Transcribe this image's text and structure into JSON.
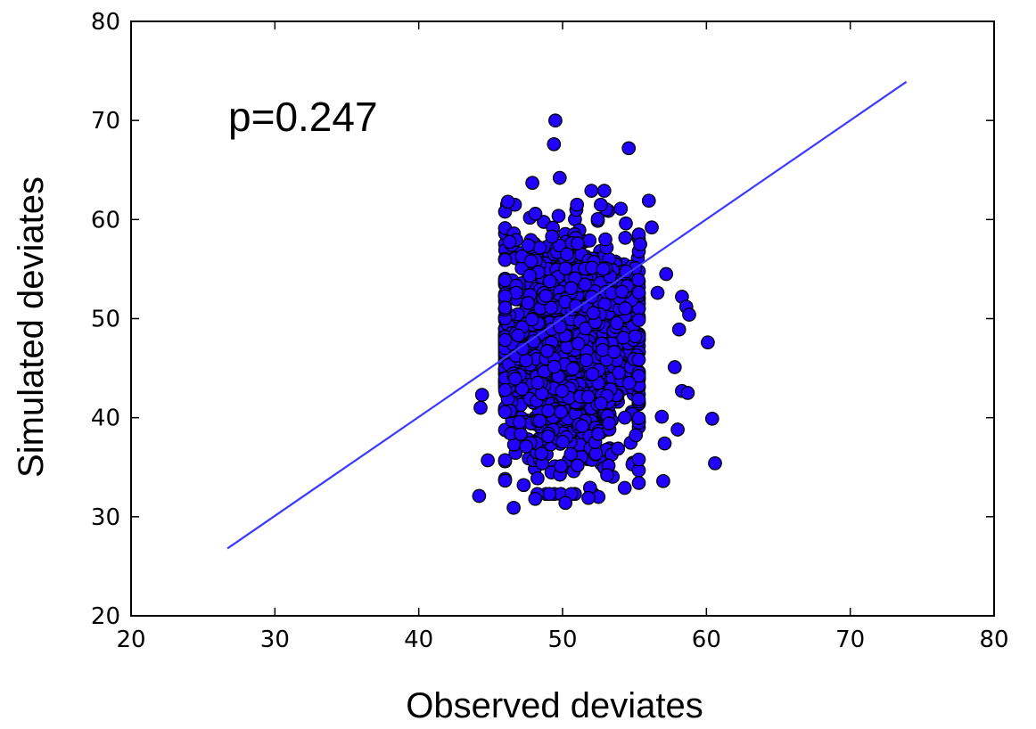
{
  "chart_data": {
    "type": "scatter",
    "title": "",
    "xlabel": "Observed deviates",
    "ylabel": "Simulated deviates",
    "xlim": [
      20,
      80
    ],
    "ylim": [
      20,
      80
    ],
    "xticks": [
      20,
      30,
      40,
      50,
      60,
      70,
      80
    ],
    "yticks": [
      20,
      30,
      40,
      50,
      60,
      70,
      80
    ],
    "grid": false,
    "annotation": "p=0.247",
    "colors": {
      "point_fill": "#2200ff",
      "point_edge": "#000000",
      "line": "#3a3aff",
      "axes": "#000000"
    },
    "reference_line": {
      "x": [
        26.7,
        73.9
      ],
      "y": [
        26.8,
        73.9
      ]
    },
    "cloud": {
      "n": 1500,
      "x_mean": 50.3,
      "x_sd": 2.7,
      "x_range": [
        44.0,
        60.7
      ],
      "y_mean": 47.0,
      "y_sd": 5.6,
      "y_range": [
        30.8,
        70.0
      ]
    },
    "notable_points": [
      [
        49.5,
        70.0
      ],
      [
        49.4,
        67.6
      ],
      [
        54.6,
        67.2
      ],
      [
        49.8,
        64.2
      ],
      [
        47.9,
        63.7
      ],
      [
        52.0,
        62.9
      ],
      [
        52.9,
        62.9
      ],
      [
        56.0,
        61.9
      ],
      [
        46.2,
        61.8
      ],
      [
        56.2,
        59.2
      ],
      [
        55.4,
        57.5
      ],
      [
        57.2,
        54.5
      ],
      [
        58.3,
        52.2
      ],
      [
        58.6,
        51.2
      ],
      [
        58.8,
        50.4
      ],
      [
        56.6,
        52.6
      ],
      [
        58.1,
        48.9
      ],
      [
        60.1,
        47.6
      ],
      [
        57.8,
        45.1
      ],
      [
        58.3,
        42.7
      ],
      [
        58.7,
        42.5
      ],
      [
        56.9,
        40.1
      ],
      [
        60.4,
        39.9
      ],
      [
        58.0,
        38.8
      ],
      [
        57.1,
        37.4
      ],
      [
        60.6,
        35.4
      ],
      [
        57.0,
        33.6
      ],
      [
        44.2,
        32.1
      ],
      [
        44.4,
        42.3
      ],
      [
        44.3,
        41.0
      ],
      [
        44.8,
        35.7
      ],
      [
        46.6,
        30.9
      ],
      [
        47.3,
        33.2
      ],
      [
        52.5,
        32.0
      ],
      [
        50.2,
        31.4
      ],
      [
        53.1,
        34.2
      ],
      [
        51.8,
        31.9
      ],
      [
        48.1,
        31.8
      ]
    ]
  }
}
